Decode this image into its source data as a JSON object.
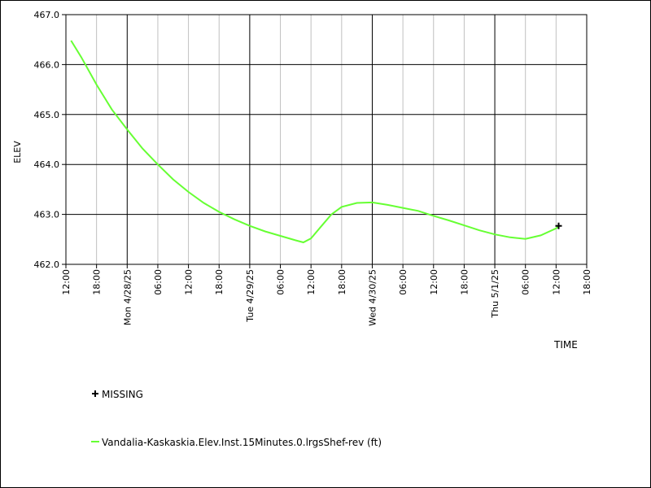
{
  "chart_data": {
    "type": "line",
    "title": "",
    "xlabel": "TIME",
    "ylabel": "ELEV",
    "ylim": [
      462.0,
      467.0
    ],
    "y_ticks": [
      "462.0",
      "463.0",
      "464.0",
      "465.0",
      "466.0",
      "467.0"
    ],
    "x_range": [
      "4/27/25 12:00",
      "5/1/25 18:00"
    ],
    "x_ticks": [
      {
        "label": "12:00",
        "time": "4/27/25 12:00",
        "major": false
      },
      {
        "label": "18:00",
        "time": "4/27/25 18:00",
        "major": false
      },
      {
        "label": "Mon 4/28/25",
        "time": "4/28/25 00:00",
        "major": true
      },
      {
        "label": "06:00",
        "time": "4/28/25 06:00",
        "major": false
      },
      {
        "label": "12:00",
        "time": "4/28/25 12:00",
        "major": false
      },
      {
        "label": "18:00",
        "time": "4/28/25 18:00",
        "major": false
      },
      {
        "label": "Tue 4/29/25",
        "time": "4/29/25 00:00",
        "major": true
      },
      {
        "label": "06:00",
        "time": "4/29/25 06:00",
        "major": false
      },
      {
        "label": "12:00",
        "time": "4/29/25 12:00",
        "major": false
      },
      {
        "label": "18:00",
        "time": "4/29/25 18:00",
        "major": false
      },
      {
        "label": "Wed 4/30/25",
        "time": "4/30/25 00:00",
        "major": true
      },
      {
        "label": "06:00",
        "time": "4/30/25 06:00",
        "major": false
      },
      {
        "label": "12:00",
        "time": "4/30/25 12:00",
        "major": false
      },
      {
        "label": "18:00",
        "time": "4/30/25 18:00",
        "major": false
      },
      {
        "label": "Thu 5/1/25",
        "time": "5/1/25 00:00",
        "major": true
      },
      {
        "label": "06:00",
        "time": "5/1/25 06:00",
        "major": false
      },
      {
        "label": "12:00",
        "time": "5/1/25 12:00",
        "major": false
      },
      {
        "label": "18:00",
        "time": "5/1/25 18:00",
        "major": false
      }
    ],
    "grid": true,
    "series": [
      {
        "name": "Vandalia-Kaskaskia.Elev.Inst.15Minutes.0.lrgsShef-rev (ft)",
        "color": "#66ff33",
        "points": [
          {
            "x": "4/27/25 13:00",
            "y": 466.48
          },
          {
            "x": "4/27/25 15:00",
            "y": 466.15
          },
          {
            "x": "4/27/25 18:00",
            "y": 465.6
          },
          {
            "x": "4/27/25 21:00",
            "y": 465.1
          },
          {
            "x": "4/28/25 00:00",
            "y": 464.7
          },
          {
            "x": "4/28/25 03:00",
            "y": 464.32
          },
          {
            "x": "4/28/25 06:00",
            "y": 464.0
          },
          {
            "x": "4/28/25 09:00",
            "y": 463.7
          },
          {
            "x": "4/28/25 12:00",
            "y": 463.45
          },
          {
            "x": "4/28/25 15:00",
            "y": 463.23
          },
          {
            "x": "4/28/25 18:00",
            "y": 463.05
          },
          {
            "x": "4/28/25 21:00",
            "y": 462.9
          },
          {
            "x": "4/29/25 00:00",
            "y": 462.77
          },
          {
            "x": "4/29/25 03:00",
            "y": 462.66
          },
          {
            "x": "4/29/25 06:00",
            "y": 462.57
          },
          {
            "x": "4/29/25 09:00",
            "y": 462.48
          },
          {
            "x": "4/29/25 10:30",
            "y": 462.44
          },
          {
            "x": "4/29/25 12:00",
            "y": 462.52
          },
          {
            "x": "4/29/25 14:00",
            "y": 462.76
          },
          {
            "x": "4/29/25 16:00",
            "y": 463.0
          },
          {
            "x": "4/29/25 18:00",
            "y": 463.15
          },
          {
            "x": "4/29/25 21:00",
            "y": 463.23
          },
          {
            "x": "4/30/25 00:00",
            "y": 463.24
          },
          {
            "x": "4/30/25 03:00",
            "y": 463.19
          },
          {
            "x": "4/30/25 06:00",
            "y": 463.13
          },
          {
            "x": "4/30/25 09:00",
            "y": 463.07
          },
          {
            "x": "4/30/25 12:00",
            "y": 462.97
          },
          {
            "x": "4/30/25 15:00",
            "y": 462.88
          },
          {
            "x": "4/30/25 18:00",
            "y": 462.78
          },
          {
            "x": "4/30/25 21:00",
            "y": 462.68
          },
          {
            "x": "5/1/25 00:00",
            "y": 462.6
          },
          {
            "x": "5/1/25 03:00",
            "y": 462.54
          },
          {
            "x": "5/1/25 06:00",
            "y": 462.51
          },
          {
            "x": "5/1/25 09:00",
            "y": 462.58
          },
          {
            "x": "5/1/25 12:00",
            "y": 462.72
          },
          {
            "x": "5/1/25 12:30",
            "y": 462.76
          }
        ]
      }
    ],
    "missing_markers": [
      {
        "x": "5/1/25 12:30",
        "y": 462.77
      }
    ],
    "legend": {
      "missing_label": "MISSING",
      "series_label": "Vandalia-Kaskaskia.Elev.Inst.15Minutes.0.lrgsShef-rev (ft)",
      "placement": "bottom-left"
    }
  }
}
